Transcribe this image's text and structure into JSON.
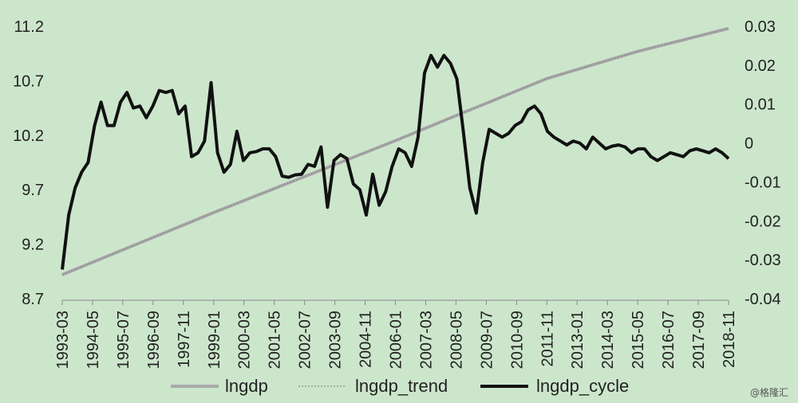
{
  "chart_data": {
    "type": "line",
    "y_left": {
      "ylim": [
        8.7,
        11.2
      ],
      "ticks": [
        "8.7",
        "9.2",
        "9.7",
        "10.2",
        "10.7",
        "11.2"
      ]
    },
    "y_right": {
      "ylim": [
        -0.04,
        0.03
      ],
      "ticks": [
        "-0.04",
        "-0.03",
        "-0.02",
        "-0.01",
        "0",
        "0.01",
        "0.02",
        "0.03"
      ]
    },
    "x_tick_labels": [
      "1993-03",
      "1994-05",
      "1995-07",
      "1996-09",
      "1997-11",
      "1999-01",
      "2000-03",
      "2001-05",
      "2002-07",
      "2003-09",
      "2004-11",
      "2006-01",
      "2007-03",
      "2008-05",
      "2009-07",
      "2010-09",
      "2011-11",
      "2013-01",
      "2014-03",
      "2015-05",
      "2016-07",
      "2017-09",
      "2018-11"
    ],
    "series": [
      {
        "name": "lngdp",
        "axis": "left",
        "color": "#a9a9a9",
        "x_start": "1993-03",
        "x_end": "2018-11",
        "points": [
          [
            "1993-03",
            8.92
          ],
          [
            "1999-01",
            9.49
          ],
          [
            "2003-09",
            9.93
          ],
          [
            "2006-01",
            10.15
          ],
          [
            "2008-05",
            10.38
          ],
          [
            "2011-11",
            10.72
          ],
          [
            "2015-05",
            10.97
          ],
          [
            "2018-11",
            11.18
          ]
        ]
      },
      {
        "name": "lngdp_trend",
        "axis": "left",
        "color": "#888888",
        "x_start": "1993-03",
        "x_end": "2018-11",
        "points": [
          [
            "1993-03",
            8.92
          ],
          [
            "1999-01",
            9.49
          ],
          [
            "2003-09",
            9.93
          ],
          [
            "2006-01",
            10.15
          ],
          [
            "2008-05",
            10.38
          ],
          [
            "2011-11",
            10.72
          ],
          [
            "2015-05",
            10.97
          ],
          [
            "2018-11",
            11.18
          ]
        ]
      },
      {
        "name": "lngdp_cycle",
        "axis": "right",
        "color": "#111111",
        "x_start": "1993-03",
        "x_end": "2018-11",
        "values": [
          -0.0325,
          -0.0185,
          -0.0115,
          -0.0075,
          -0.005,
          0.0045,
          0.0105,
          0.0045,
          0.0045,
          0.0105,
          0.013,
          0.009,
          0.0095,
          0.0065,
          0.0095,
          0.0135,
          0.013,
          0.0135,
          0.0075,
          0.0095,
          -0.0035,
          -0.0025,
          0.0005,
          0.0155,
          -0.0025,
          -0.0075,
          -0.0055,
          0.003,
          -0.0045,
          -0.0025,
          -0.0022,
          -0.0015,
          -0.0015,
          -0.0035,
          -0.0085,
          -0.0088,
          -0.0082,
          -0.008,
          -0.0055,
          -0.006,
          -0.001,
          -0.0165,
          -0.0045,
          -0.003,
          -0.004,
          -0.0105,
          -0.012,
          -0.0185,
          -0.008,
          -0.016,
          -0.0125,
          -0.006,
          -0.0015,
          -0.0025,
          -0.006,
          0.0015,
          0.018,
          0.0225,
          0.0195,
          0.0225,
          0.0205,
          0.0165,
          0.003,
          -0.0115,
          -0.018,
          -0.005,
          0.0035,
          0.0025,
          0.0015,
          0.0025,
          0.0045,
          0.0055,
          0.0085,
          0.0095,
          0.0075,
          0.003,
          0.0015,
          0.0005,
          -0.0005,
          0.0005,
          0.0,
          -0.0015,
          0.0015,
          0.0,
          -0.0015,
          -0.0008,
          -0.0005,
          -0.001,
          -0.0025,
          -0.0015,
          -0.0015,
          -0.0035,
          -0.0045,
          -0.0035,
          -0.0025,
          -0.003,
          -0.0035,
          -0.002,
          -0.0015,
          -0.002,
          -0.0025,
          -0.0015,
          -0.0025,
          -0.004
        ]
      }
    ],
    "legend": {
      "placement": "bottom",
      "entries": [
        "lngdp",
        "lngdp_trend",
        "lngdp_cycle"
      ]
    },
    "grid": false
  },
  "watermark": "@格隆汇"
}
